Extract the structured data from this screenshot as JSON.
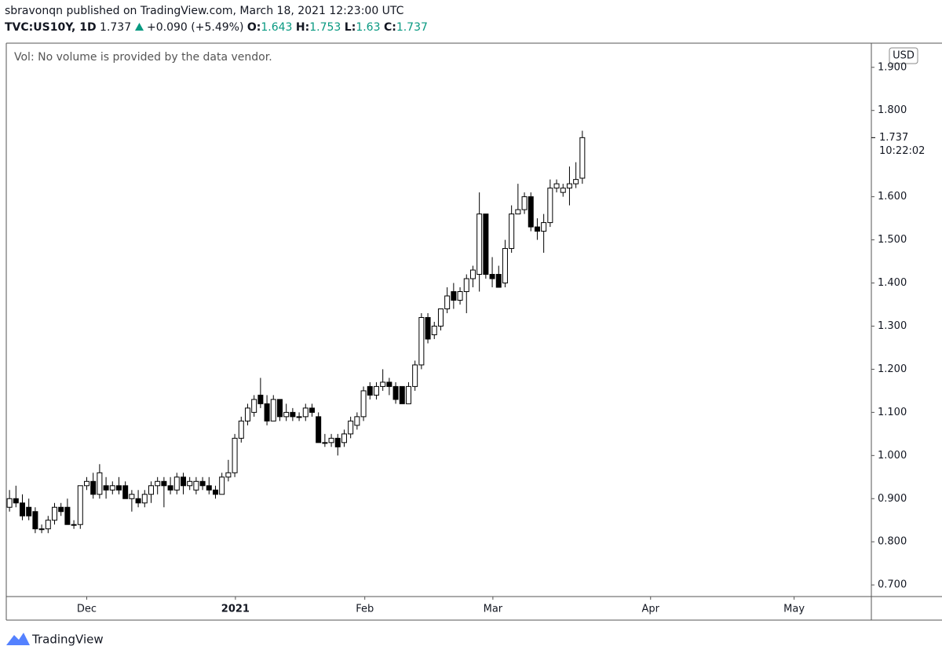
{
  "header": {
    "published": "sbravonqn published on TradingView.com, March 18, 2021 12:23:00 UTC",
    "symbol": "TVC:US10Y, 1D",
    "change": "+0.090 (+5.49%)",
    "o_label": "O:",
    "h_label": "H:",
    "l_label": "L:",
    "c_label": "C:"
  },
  "chart_data": {
    "type": "candlestick",
    "volume_note": "Vol: No volume is provided by the data vendor.",
    "currency": "USD",
    "countdown": "10:22:02",
    "open": [
      0.88,
      0.9,
      0.89,
      0.88,
      0.87,
      0.83,
      0.83,
      0.85,
      0.88,
      0.88,
      0.84,
      0.84,
      0.93,
      0.94,
      0.91,
      0.93,
      0.92,
      0.93,
      0.93,
      0.9,
      0.9,
      0.89,
      0.91,
      0.93,
      0.94,
      0.93,
      0.92,
      0.95,
      0.93,
      0.92,
      0.94,
      0.93,
      0.92,
      0.91,
      0.95,
      0.96,
      1.04,
      1.08,
      1.1,
      1.14,
      1.12,
      1.08,
      1.13,
      1.09,
      1.1,
      1.09,
      1.09,
      1.11,
      1.09,
      1.03,
      1.03,
      1.04,
      1.03,
      1.05,
      1.07,
      1.09,
      1.16,
      1.14,
      1.16,
      1.17,
      1.16,
      1.16,
      1.12,
      1.16,
      1.21,
      1.32,
      1.28,
      1.3,
      1.34,
      1.38,
      1.36,
      1.38,
      1.41,
      1.42,
      1.56,
      1.42,
      1.42,
      1.4,
      1.48,
      1.56,
      1.57,
      1.6,
      1.53,
      1.52,
      1.54,
      1.62,
      1.61,
      1.62,
      1.63,
      1.643
    ],
    "high": [
      0.92,
      0.93,
      0.91,
      0.9,
      0.88,
      0.84,
      0.86,
      0.89,
      0.89,
      0.9,
      0.85,
      0.93,
      0.95,
      0.96,
      0.98,
      0.95,
      0.94,
      0.95,
      0.94,
      0.92,
      0.92,
      0.92,
      0.94,
      0.95,
      0.95,
      0.95,
      0.96,
      0.96,
      0.95,
      0.95,
      0.95,
      0.95,
      0.93,
      0.96,
      0.99,
      1.05,
      1.09,
      1.12,
      1.14,
      1.18,
      1.14,
      1.14,
      1.13,
      1.12,
      1.11,
      1.1,
      1.12,
      1.12,
      1.1,
      1.05,
      1.05,
      1.05,
      1.06,
      1.09,
      1.1,
      1.16,
      1.17,
      1.17,
      1.2,
      1.18,
      1.17,
      1.16,
      1.17,
      1.22,
      1.33,
      1.33,
      1.31,
      1.34,
      1.39,
      1.4,
      1.39,
      1.42,
      1.44,
      1.61,
      1.56,
      1.46,
      1.44,
      1.5,
      1.58,
      1.63,
      1.61,
      1.61,
      1.55,
      1.56,
      1.64,
      1.64,
      1.63,
      1.67,
      1.68,
      1.753
    ],
    "low": [
      0.87,
      0.88,
      0.85,
      0.85,
      0.82,
      0.82,
      0.82,
      0.84,
      0.86,
      0.84,
      0.83,
      0.83,
      0.92,
      0.9,
      0.9,
      0.9,
      0.91,
      0.91,
      0.9,
      0.87,
      0.88,
      0.88,
      0.89,
      0.91,
      0.88,
      0.91,
      0.91,
      0.91,
      0.92,
      0.91,
      0.92,
      0.91,
      0.9,
      0.91,
      0.94,
      0.95,
      1.03,
      1.07,
      1.09,
      1.11,
      1.07,
      1.08,
      1.08,
      1.08,
      1.08,
      1.08,
      1.08,
      1.09,
      1.03,
      1.02,
      1.02,
      1.0,
      1.02,
      1.04,
      1.06,
      1.08,
      1.13,
      1.13,
      1.15,
      1.14,
      1.12,
      1.12,
      1.12,
      1.15,
      1.2,
      1.26,
      1.27,
      1.29,
      1.33,
      1.34,
      1.35,
      1.33,
      1.39,
      1.38,
      1.41,
      1.39,
      1.39,
      1.39,
      1.47,
      1.56,
      1.56,
      1.52,
      1.5,
      1.47,
      1.53,
      1.61,
      1.6,
      1.58,
      1.62,
      1.63
    ],
    "close": [
      0.9,
      0.89,
      0.86,
      0.86,
      0.83,
      0.83,
      0.85,
      0.88,
      0.87,
      0.84,
      0.84,
      0.93,
      0.94,
      0.91,
      0.96,
      0.92,
      0.93,
      0.92,
      0.9,
      0.91,
      0.89,
      0.91,
      0.93,
      0.94,
      0.93,
      0.92,
      0.95,
      0.93,
      0.94,
      0.94,
      0.93,
      0.92,
      0.91,
      0.95,
      0.96,
      1.04,
      1.08,
      1.11,
      1.13,
      1.12,
      1.08,
      1.13,
      1.09,
      1.1,
      1.09,
      1.09,
      1.11,
      1.1,
      1.03,
      1.03,
      1.04,
      1.02,
      1.05,
      1.08,
      1.09,
      1.15,
      1.14,
      1.16,
      1.17,
      1.16,
      1.13,
      1.12,
      1.16,
      1.21,
      1.32,
      1.27,
      1.3,
      1.34,
      1.37,
      1.36,
      1.38,
      1.41,
      1.43,
      1.56,
      1.42,
      1.41,
      1.39,
      1.48,
      1.56,
      1.57,
      1.6,
      1.53,
      1.52,
      1.54,
      1.62,
      1.63,
      1.62,
      1.63,
      1.64,
      1.737
    ],
    "xlim": [
      -0.5,
      133.9
    ],
    "xticks": [
      {
        "value": 12,
        "label": "Dec"
      },
      {
        "value": 35.1,
        "label": "2021"
      },
      {
        "value": 55.2,
        "label": "Feb"
      },
      {
        "value": 75.1,
        "label": "Mar"
      },
      {
        "value": 99.6,
        "label": "Apr"
      },
      {
        "value": 121.9,
        "label": "May"
      }
    ],
    "ylim": [
      0.673,
      1.956
    ],
    "yticks": [
      {
        "value": 0.7,
        "label": "0.700"
      },
      {
        "value": 0.8,
        "label": "0.800"
      },
      {
        "value": 0.9,
        "label": "0.900"
      },
      {
        "value": 1.0,
        "label": "1.000"
      },
      {
        "value": 1.1,
        "label": "1.100"
      },
      {
        "value": 1.2,
        "label": "1.200"
      },
      {
        "value": 1.3,
        "label": "1.300"
      },
      {
        "value": 1.4,
        "label": "1.400"
      },
      {
        "value": 1.5,
        "label": "1.500"
      },
      {
        "value": 1.6,
        "label": "1.600"
      },
      {
        "value": 1.8,
        "label": "1.800"
      },
      {
        "value": 1.9,
        "label": "1.900"
      }
    ],
    "up_color": "#ffffff",
    "down_color": "#000000",
    "wick_color": "#000000"
  },
  "footer": {
    "brand": "TradingView"
  }
}
